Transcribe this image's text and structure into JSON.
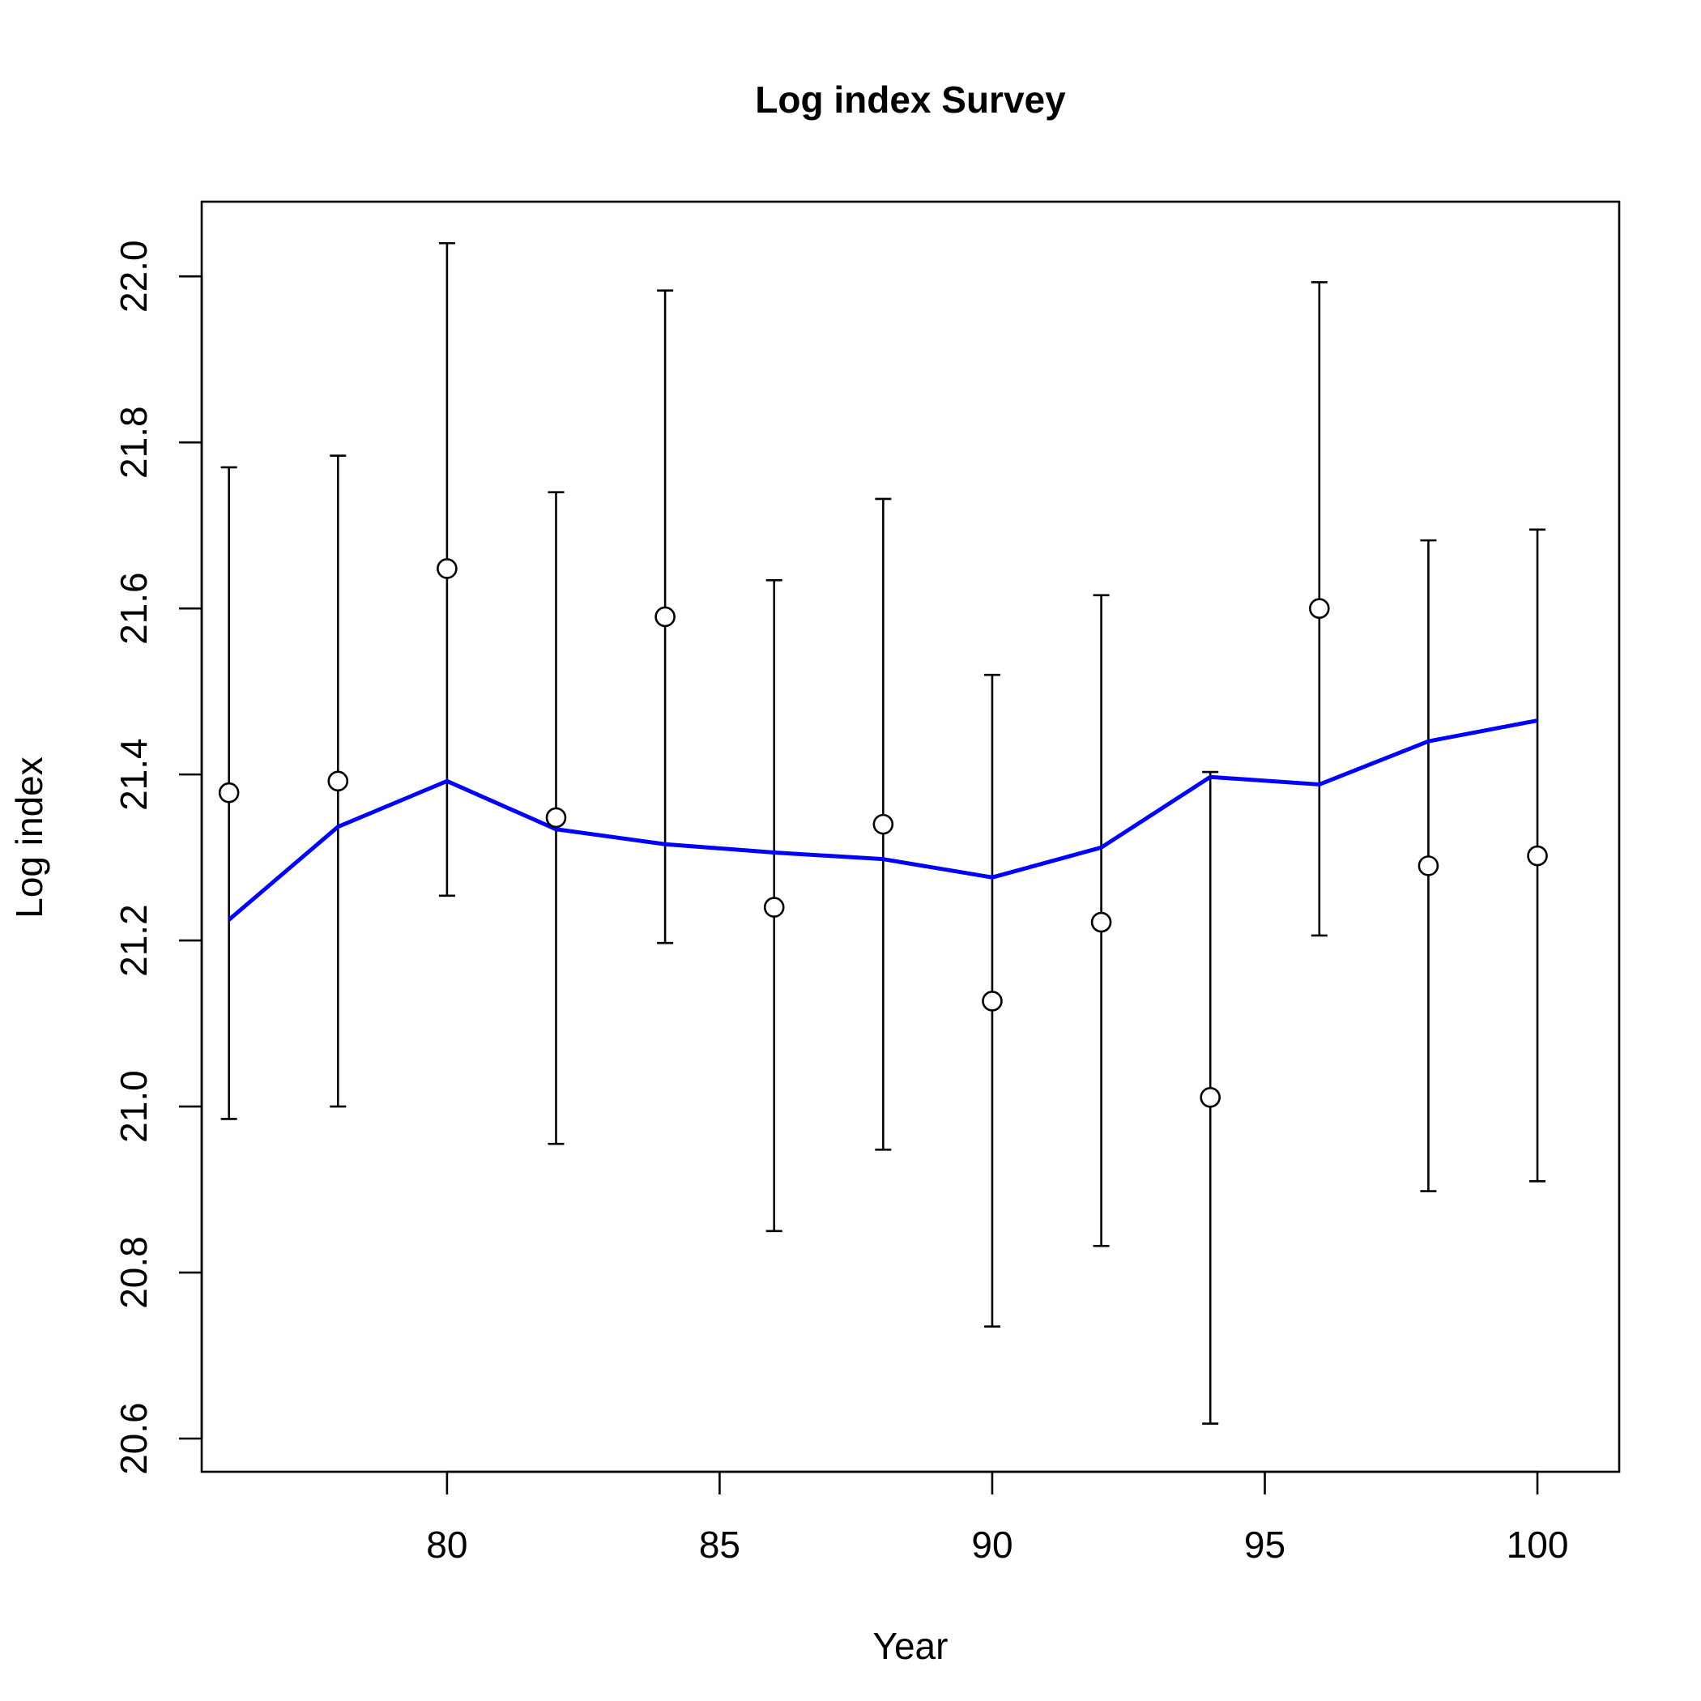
{
  "chart_data": {
    "type": "scatter",
    "title": "Log index Survey",
    "xlabel": "Year",
    "ylabel": "Log index",
    "xlim": [
      75.5,
      101.5
    ],
    "ylim": [
      20.56,
      22.09
    ],
    "x_ticks": [
      80,
      85,
      90,
      95,
      100
    ],
    "x_tick_labels": [
      "80",
      "85",
      "90",
      "95",
      "100"
    ],
    "y_ticks": [
      20.6,
      20.8,
      21.0,
      21.2,
      21.4,
      21.6,
      21.8,
      22.0
    ],
    "y_tick_labels": [
      "20.6",
      "20.8",
      "21.0",
      "21.2",
      "21.4",
      "21.6",
      "21.8",
      "22.0"
    ],
    "grid": false,
    "legend": "none",
    "colors": {
      "fitted": "#0000ff",
      "observed": "#000000"
    },
    "observed": {
      "x": [
        76,
        78,
        80,
        82,
        84,
        86,
        88,
        90,
        92,
        94,
        96,
        98,
        100
      ],
      "y": [
        21.378,
        21.392,
        21.648,
        21.348,
        21.59,
        21.24,
        21.34,
        21.127,
        21.222,
        21.011,
        21.6,
        21.29,
        21.302
      ],
      "lower": [
        20.985,
        21.0,
        21.254,
        20.955,
        21.197,
        20.85,
        20.948,
        20.735,
        20.832,
        20.618,
        21.206,
        20.898,
        20.91
      ],
      "upper": [
        21.77,
        21.784,
        22.04,
        21.74,
        21.983,
        21.634,
        21.732,
        21.52,
        21.616,
        21.403,
        21.993,
        21.682,
        21.695
      ]
    },
    "fitted": {
      "x": [
        76,
        78,
        80,
        82,
        84,
        86,
        88,
        90,
        92,
        94,
        96,
        98,
        100
      ],
      "y": [
        21.225,
        21.337,
        21.392,
        21.334,
        21.316,
        21.306,
        21.298,
        21.276,
        21.312,
        21.397,
        21.388,
        21.44,
        21.465
      ]
    }
  }
}
